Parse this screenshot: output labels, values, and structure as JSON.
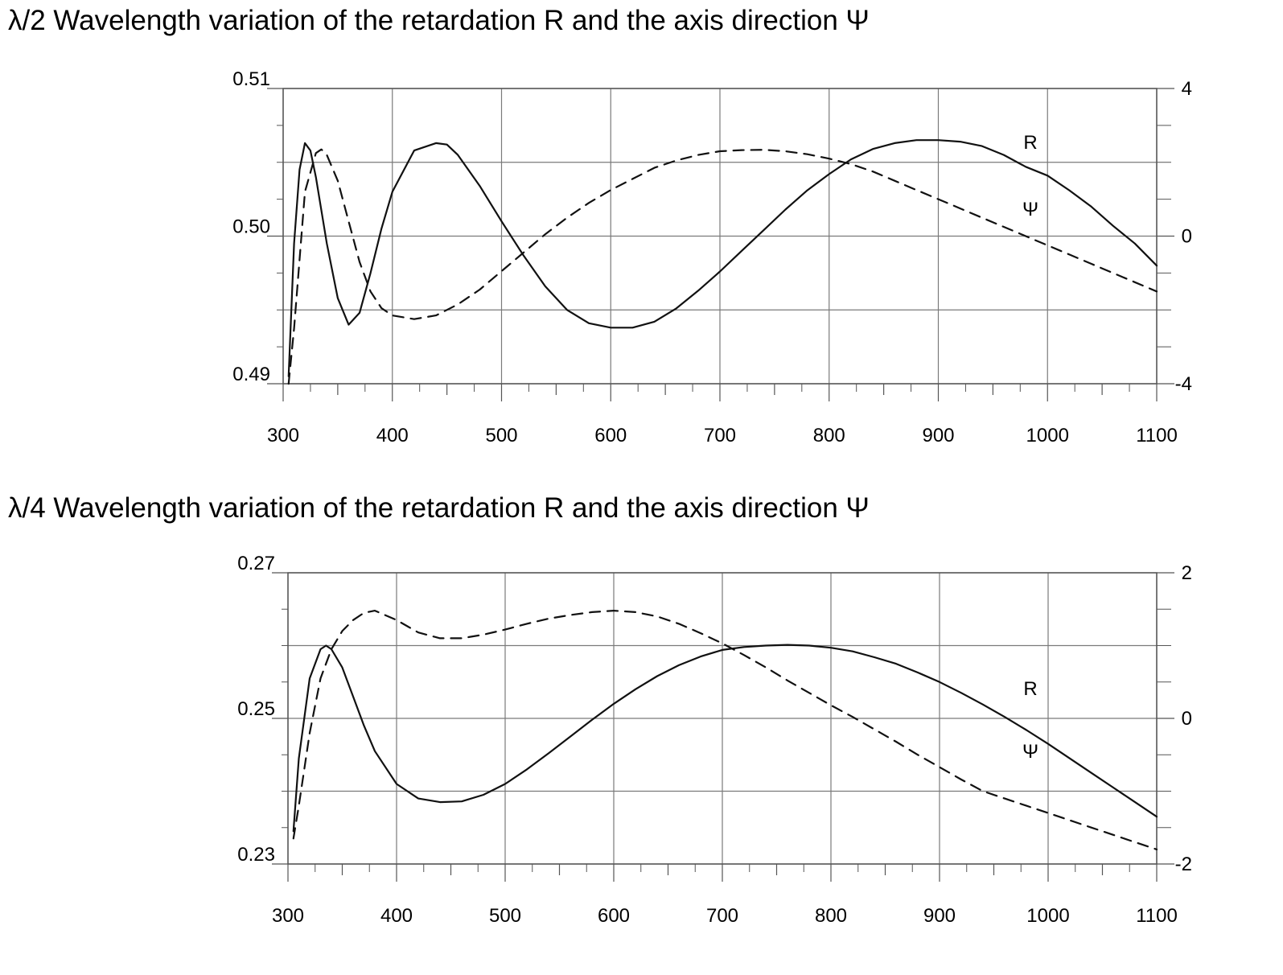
{
  "chart_data": [
    {
      "type": "line",
      "title": "λ/2 Wavelength variation of the retardation R and the axis direction Ψ",
      "xlabel": "",
      "ylabel": "",
      "xlim": [
        300,
        1100
      ],
      "ylim": [
        0.49,
        0.51
      ],
      "y2lim": [
        -4,
        4
      ],
      "x_ticks": [
        "300",
        "400",
        "500",
        "600",
        "700",
        "800",
        "900",
        "1000",
        "1100"
      ],
      "y_ticks": [
        "0.51",
        "0.50",
        "0.49"
      ],
      "y2_ticks": [
        "4",
        "0",
        "-4"
      ],
      "grid": true,
      "series": [
        {
          "name": "R",
          "axis": "left",
          "style": "solid",
          "x": [
            305,
            310,
            315,
            320,
            325,
            330,
            340,
            350,
            360,
            370,
            380,
            390,
            400,
            420,
            440,
            450,
            460,
            480,
            500,
            520,
            540,
            560,
            580,
            600,
            620,
            640,
            660,
            680,
            700,
            720,
            740,
            760,
            780,
            800,
            820,
            840,
            860,
            880,
            900,
            920,
            940,
            960,
            980,
            1000,
            1020,
            1040,
            1060,
            1080,
            1100
          ],
          "values": [
            0.4905,
            0.4995,
            0.5045,
            0.5063,
            0.5058,
            0.504,
            0.4995,
            0.4958,
            0.494,
            0.4948,
            0.4975,
            0.5005,
            0.503,
            0.5058,
            0.5063,
            0.5062,
            0.5055,
            0.5034,
            0.501,
            0.4987,
            0.4966,
            0.495,
            0.4941,
            0.4938,
            0.4938,
            0.4942,
            0.4951,
            0.4963,
            0.4976,
            0.499,
            0.5004,
            0.5018,
            0.5031,
            0.5042,
            0.5052,
            0.5059,
            0.5063,
            0.5065,
            0.5065,
            0.5064,
            0.5061,
            0.5055,
            0.5047,
            0.5041,
            0.5031,
            0.502,
            0.5007,
            0.4995,
            0.498
          ]
        },
        {
          "name": "Ψ",
          "axis": "right",
          "style": "dashed",
          "x": [
            305,
            310,
            320,
            330,
            335,
            340,
            350,
            360,
            370,
            380,
            390,
            400,
            420,
            440,
            460,
            480,
            500,
            520,
            540,
            560,
            580,
            600,
            620,
            640,
            660,
            680,
            700,
            720,
            740,
            760,
            780,
            800,
            820,
            840,
            860,
            880,
            900,
            920,
            940,
            960,
            980,
            1000,
            1020,
            1040,
            1060,
            1080,
            1100
          ],
          "values": [
            -4.0,
            -2.5,
            1.2,
            2.25,
            2.35,
            2.2,
            1.5,
            0.4,
            -0.7,
            -1.5,
            -1.95,
            -2.15,
            -2.25,
            -2.15,
            -1.85,
            -1.45,
            -0.95,
            -0.45,
            0.05,
            0.5,
            0.9,
            1.25,
            1.55,
            1.85,
            2.05,
            2.2,
            2.3,
            2.33,
            2.34,
            2.3,
            2.22,
            2.1,
            1.95,
            1.75,
            1.5,
            1.25,
            1.0,
            0.75,
            0.5,
            0.25,
            0.0,
            -0.25,
            -0.5,
            -0.75,
            -1.0,
            -1.25,
            -1.5
          ]
        }
      ]
    },
    {
      "type": "line",
      "title": "λ/4 Wavelength variation of the retardation R and the axis direction Ψ",
      "xlabel": "",
      "ylabel": "",
      "xlim": [
        300,
        1100
      ],
      "ylim": [
        0.23,
        0.27
      ],
      "y2lim": [
        -2,
        2
      ],
      "x_ticks": [
        "300",
        "400",
        "500",
        "600",
        "700",
        "800",
        "900",
        "1000",
        "1100"
      ],
      "y_ticks": [
        "0.27",
        "0.25",
        "0.23"
      ],
      "y2_ticks": [
        "2",
        "0",
        "-2"
      ],
      "grid": true,
      "series": [
        {
          "name": "R",
          "axis": "left",
          "style": "solid",
          "x": [
            305,
            310,
            320,
            330,
            335,
            340,
            350,
            360,
            370,
            380,
            400,
            420,
            440,
            460,
            480,
            500,
            520,
            540,
            560,
            580,
            600,
            620,
            640,
            660,
            680,
            700,
            720,
            740,
            760,
            780,
            800,
            820,
            840,
            860,
            880,
            900,
            920,
            940,
            960,
            980,
            1000,
            1020,
            1040,
            1060,
            1080,
            1100
          ],
          "values": [
            0.2345,
            0.2445,
            0.2555,
            0.2595,
            0.26,
            0.2595,
            0.257,
            0.253,
            0.249,
            0.2455,
            0.241,
            0.239,
            0.2385,
            0.2386,
            0.2395,
            0.241,
            0.243,
            0.2452,
            0.2475,
            0.2498,
            0.252,
            0.254,
            0.2558,
            0.2573,
            0.2585,
            0.2594,
            0.2598,
            0.26,
            0.2601,
            0.26,
            0.2597,
            0.2592,
            0.2584,
            0.2575,
            0.2563,
            0.255,
            0.2535,
            0.2519,
            0.2502,
            0.2484,
            0.2465,
            0.2445,
            0.2425,
            0.2405,
            0.2385,
            0.2365
          ]
        },
        {
          "name": "Ψ",
          "axis": "right",
          "style": "dashed",
          "x": [
            305,
            310,
            320,
            330,
            340,
            350,
            360,
            370,
            380,
            400,
            420,
            440,
            460,
            480,
            500,
            520,
            540,
            560,
            580,
            600,
            620,
            640,
            660,
            680,
            700,
            720,
            740,
            760,
            780,
            800,
            820,
            840,
            860,
            880,
            900,
            920,
            940,
            960,
            980,
            1000,
            1020,
            1040,
            1060,
            1080,
            1100
          ],
          "values": [
            -1.65,
            -1.2,
            -0.2,
            0.55,
            0.95,
            1.2,
            1.35,
            1.45,
            1.48,
            1.35,
            1.18,
            1.1,
            1.1,
            1.15,
            1.22,
            1.3,
            1.37,
            1.42,
            1.46,
            1.48,
            1.46,
            1.4,
            1.3,
            1.17,
            1.03,
            0.87,
            0.7,
            0.52,
            0.35,
            0.18,
            0.02,
            -0.15,
            -0.32,
            -0.5,
            -0.67,
            -0.84,
            -1.0,
            -1.1,
            -1.2,
            -1.3,
            -1.4,
            -1.5,
            -1.6,
            -1.7,
            -1.8
          ]
        }
      ]
    }
  ]
}
